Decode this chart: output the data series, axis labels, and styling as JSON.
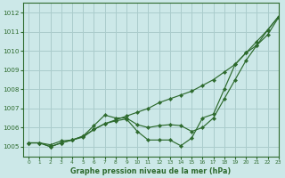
{
  "title": "Graphe pression niveau de la mer (hPa)",
  "bg_color": "#cce8e8",
  "grid_color": "#aacccc",
  "line_color": "#2d6a2d",
  "xlim": [
    -0.5,
    23
  ],
  "ylim": [
    1004.5,
    1012.5
  ],
  "yticks": [
    1005,
    1006,
    1007,
    1008,
    1009,
    1010,
    1011,
    1012
  ],
  "xticks": [
    0,
    1,
    2,
    3,
    4,
    5,
    6,
    7,
    8,
    9,
    10,
    11,
    12,
    13,
    14,
    15,
    16,
    17,
    18,
    19,
    20,
    21,
    22,
    23
  ],
  "line1_x": [
    0,
    1,
    2,
    3,
    4,
    5,
    6,
    7,
    8,
    9,
    10,
    11,
    12,
    13,
    14,
    15,
    16,
    17,
    18,
    19,
    20,
    21,
    22,
    23
  ],
  "line1_y": [
    1005.2,
    1005.2,
    1005.1,
    1005.3,
    1005.35,
    1005.5,
    1005.9,
    1006.2,
    1006.4,
    1006.6,
    1006.8,
    1007.0,
    1007.3,
    1007.5,
    1007.7,
    1007.9,
    1008.2,
    1008.5,
    1008.9,
    1009.3,
    1009.9,
    1010.5,
    1011.1,
    1011.8
  ],
  "line2_x": [
    0,
    1,
    2,
    3,
    4,
    5,
    6,
    7,
    8,
    9,
    10,
    11,
    12,
    13,
    14,
    15,
    16,
    17,
    18,
    19,
    20,
    21,
    22,
    23
  ],
  "line2_y": [
    1005.2,
    1005.2,
    1005.0,
    1005.2,
    1005.35,
    1005.55,
    1006.1,
    1006.65,
    1006.5,
    1006.5,
    1006.15,
    1006.0,
    1006.1,
    1006.15,
    1006.1,
    1005.8,
    1006.0,
    1006.5,
    1007.5,
    1008.5,
    1009.5,
    1010.3,
    1011.1,
    1011.8
  ],
  "line3_x": [
    0,
    1,
    2,
    3,
    4,
    5,
    6,
    7,
    8,
    9,
    10,
    11,
    12,
    13,
    14,
    15,
    16,
    17,
    18,
    19,
    20,
    21,
    22,
    23
  ],
  "line3_y": [
    1005.2,
    1005.2,
    1005.0,
    1005.2,
    1005.35,
    1005.55,
    1005.9,
    1006.2,
    1006.35,
    1006.45,
    1005.8,
    1005.35,
    1005.35,
    1005.35,
    1005.05,
    1005.45,
    1006.5,
    1006.7,
    1008.0,
    1009.3,
    1009.9,
    1010.3,
    1010.85,
    1011.75
  ]
}
